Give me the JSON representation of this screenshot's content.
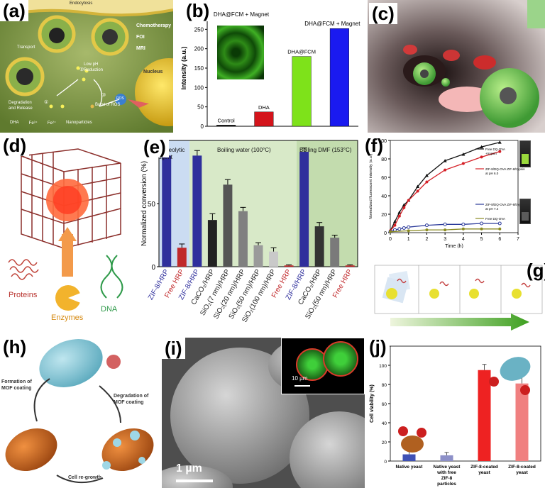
{
  "labels": {
    "a": "(a)",
    "b": "(b)",
    "c": "(c)",
    "d": "(d)",
    "e": "(e)",
    "f": "(f)",
    "g": "(g)",
    "h": "(h)",
    "i": "(i)",
    "j": "(j)"
  },
  "panel_a": {
    "endocytosis": "Endocytosis",
    "transport": "Transport",
    "chemotherapy": "Chemotherapy",
    "foi": "FOI",
    "mri": "MRI",
    "nucleus": "Nucleus",
    "low_ph": "Low pH",
    "reduction": "Reduction",
    "burst": "Burst of ROS",
    "degradation": "Degradation",
    "and_release": "and Release",
    "ros": "ROS",
    "legend_dha": "DHA",
    "legend_fe3": "Fe³⁺",
    "legend_fe2": "Fe²⁺",
    "legend_np": "Nanoparticles",
    "step1": "①",
    "step2": "②",
    "step3": "③"
  },
  "panel_b": {
    "inset_label": "DHA@FCM + Magnet",
    "ylabel": "Intensity (a.u.)"
  },
  "panel_d": {
    "proteins": "Proteins",
    "enzymes": "Enzymes",
    "dna": "DNA"
  },
  "panel_e": {
    "group_labels": [
      "Proteolytic agent",
      "Boiling water (100°C)",
      "Boiling DMF (153°C)"
    ]
  },
  "panel_f": {
    "ylabel": "Normalized fluorescent intensity (a.u.)",
    "xlabel": "Time (h)",
    "legend": [
      "Free DQ-OVA +trypsin",
      "ZIF-8/DQ-OVA ZIF-8/trypsin at pH 6.0",
      "ZIF-8/DQ-OVA ZIF-8/trypsin at pH 7.4",
      "Free DQ-OVA"
    ]
  },
  "panel_h": {
    "formation": "Formation of MOF coating",
    "degradation": "Degradation of MOF coating",
    "regrowth": "Cell re-growth"
  },
  "panel_i": {
    "scale_main": "1 µm",
    "scale_inset": "10 µm"
  },
  "panel_j": {
    "ylabel": "Cell viability (%)"
  },
  "chart_data": [
    {
      "type": "bar",
      "categories": [
        "Control",
        "DHA",
        "DHA@FCM",
        "DHA@FCM + Magnet"
      ],
      "values": [
        3,
        37,
        180,
        252
      ],
      "colors": [
        "#111111",
        "#d4141b",
        "#7ee21a",
        "#1a1af0"
      ],
      "ylim": [
        0,
        300
      ],
      "yticks": [
        0,
        50,
        100,
        150,
        200,
        250,
        300
      ],
      "ylabel": "Intensity (a.u.)"
    },
    {
      "type": "bar",
      "categories": [
        "ZIF-8/HRP",
        "Free HRP",
        "ZIF-8/HRP",
        "CaCO₃/HRP",
        "SiO₂(7 nm)/HRP",
        "SiO₂(20 nm)/HRP",
        "SiO₂(50 nm)/HRP",
        "SiO₂(100 nm)/HRP",
        "Free HRP",
        "ZIF-8/HRP",
        "CaCO₃/HRP",
        "SiO₂(50 nm)/HRP",
        "Free HRP"
      ],
      "values": [
        88,
        15,
        88,
        37,
        65,
        44,
        17,
        12,
        1,
        91,
        32,
        23,
        1
      ],
      "errors": [
        4,
        3,
        4,
        5,
        4,
        3,
        2,
        3,
        0.5,
        3,
        3,
        2,
        0.5
      ],
      "colors": [
        "#2f2f9c",
        "#c0282a",
        "#2f2f9c",
        "#222222",
        "#555555",
        "#808080",
        "#9a9a9a",
        "#c9c9c9",
        "#c0282a",
        "#2f2f9c",
        "#333333",
        "#7a7a7a",
        "#c0282a"
      ],
      "label_colors": [
        "#2f2f9c",
        "#c0282a",
        "#2f2f9c",
        "#222222",
        "#222222",
        "#222222",
        "#222222",
        "#222222",
        "#c0282a",
        "#2f2f9c",
        "#222222",
        "#222222",
        "#c0282a"
      ],
      "ylim": [
        0,
        100
      ],
      "yticks": [
        0,
        50,
        100
      ],
      "ylabel": "Normalized conversion (%)",
      "groups": [
        [
          0,
          1
        ],
        [
          2,
          8
        ],
        [
          9,
          12
        ]
      ]
    },
    {
      "type": "line",
      "xlim": [
        0,
        7
      ],
      "ylim": [
        0,
        100
      ],
      "xticks": [
        0,
        1,
        2,
        3,
        4,
        5,
        6,
        7
      ],
      "yticks": [
        0,
        20,
        40,
        60,
        80,
        100
      ],
      "xlabel": "Time (h)",
      "ylabel": "Normalized fluorescent intensity (a.u.)",
      "series": [
        {
          "name": "Free DQ-OVA +trypsin",
          "color": "#111111",
          "x": [
            0,
            0.25,
            0.5,
            0.75,
            1,
            1.5,
            2,
            3,
            4,
            5,
            6
          ],
          "y": [
            2,
            12,
            22,
            30,
            35,
            50,
            62,
            78,
            85,
            93,
            98
          ]
        },
        {
          "name": "ZIF-8/DQ-OVA ZIF-8/trypsin at pH 6.0",
          "color": "#d52027",
          "x": [
            0,
            0.25,
            0.5,
            0.75,
            1,
            1.5,
            2,
            3,
            4,
            5,
            6
          ],
          "y": [
            2,
            8,
            18,
            27,
            35,
            45,
            55,
            68,
            75,
            82,
            88
          ]
        },
        {
          "name": "ZIF-8/DQ-OVA ZIF-8/trypsin at pH 7.4",
          "color": "#2b3a9a",
          "x": [
            0,
            0.25,
            0.5,
            0.75,
            1,
            2,
            3,
            4,
            5,
            6
          ],
          "y": [
            1,
            3,
            4,
            5,
            6,
            8,
            9,
            9,
            10,
            10
          ]
        },
        {
          "name": "Free DQ-OVA",
          "color": "#8a8a20",
          "x": [
            0,
            1,
            2,
            3,
            4,
            5,
            6
          ],
          "y": [
            1,
            2,
            3,
            3,
            4,
            4,
            4
          ]
        }
      ]
    },
    {
      "type": "bar",
      "categories": [
        "Native yeast",
        "Native yeast with free ZIF-8 particles",
        "ZIF-8-coated yeast",
        "ZIF-8-coated yeast"
      ],
      "values": [
        7,
        6,
        95,
        81
      ],
      "errors": [
        4,
        3,
        6,
        9
      ],
      "colors": [
        "#3f51b5",
        "#8d90c8",
        "#ee2222",
        "#f08080"
      ],
      "ylim": [
        0,
        120
      ],
      "yticks": [
        0,
        20,
        40,
        60,
        80,
        100,
        120
      ],
      "ylabel": "Cell viability (%)"
    }
  ]
}
